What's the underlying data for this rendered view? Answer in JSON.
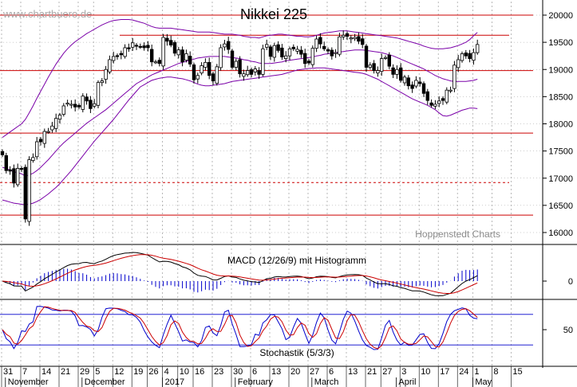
{
  "chart_data": [
    {
      "panel": "price",
      "type": "candlestick",
      "title": "Nikkei 225",
      "watermark": "www.chartbuero.de",
      "credit": "Hoppenstedt Charts",
      "y_ticks": [
        "16000",
        "16500",
        "17000",
        "17500",
        "18000",
        "18500",
        "19000",
        "19500",
        "20000"
      ],
      "ylim": [
        15800,
        20150
      ],
      "horizontal_lines": [
        {
          "value": 20000,
          "style": "solid"
        },
        {
          "value": 19630,
          "style": "solid"
        },
        {
          "value": 18980,
          "style": "solid"
        },
        {
          "value": 17830,
          "style": "solid"
        },
        {
          "value": 16920,
          "style": "dashed"
        },
        {
          "value": 16320,
          "style": "solid"
        }
      ],
      "days": [
        "2016-10-31",
        "2016-11-01",
        "2016-11-02",
        "2016-11-04",
        "2016-11-07",
        "2016-11-08",
        "2016-11-09",
        "2016-11-10",
        "2016-11-11",
        "2016-11-14",
        "2016-11-15",
        "2016-11-16",
        "2016-11-17",
        "2016-11-18",
        "2016-11-21",
        "2016-11-22",
        "2016-11-24",
        "2016-11-25",
        "2016-11-28",
        "2016-11-29",
        "2016-11-30",
        "2016-12-01",
        "2016-12-02",
        "2016-12-05",
        "2016-12-06",
        "2016-12-07",
        "2016-12-08",
        "2016-12-09",
        "2016-12-12",
        "2016-12-13",
        "2016-12-14",
        "2016-12-15",
        "2016-12-16",
        "2016-12-19",
        "2016-12-20",
        "2016-12-21",
        "2016-12-22",
        "2016-12-26",
        "2016-12-27",
        "2016-12-28",
        "2016-12-29",
        "2016-12-30",
        "2017-01-04",
        "2017-01-05",
        "2017-01-06",
        "2017-01-10",
        "2017-01-11",
        "2017-01-12",
        "2017-01-13",
        "2017-01-16",
        "2017-01-17",
        "2017-01-18",
        "2017-01-19",
        "2017-01-20",
        "2017-01-23",
        "2017-01-24",
        "2017-01-25",
        "2017-01-26",
        "2017-01-27",
        "2017-01-30",
        "2017-01-31",
        "2017-02-01",
        "2017-02-02",
        "2017-02-03",
        "2017-02-06",
        "2017-02-07",
        "2017-02-08",
        "2017-02-09",
        "2017-02-10",
        "2017-02-13",
        "2017-02-14",
        "2017-02-15",
        "2017-02-16",
        "2017-02-17",
        "2017-02-20",
        "2017-02-21",
        "2017-02-22",
        "2017-02-23",
        "2017-02-24",
        "2017-02-27",
        "2017-02-28",
        "2017-03-01",
        "2017-03-02",
        "2017-03-03",
        "2017-03-06",
        "2017-03-07",
        "2017-03-08",
        "2017-03-09",
        "2017-03-10",
        "2017-03-13",
        "2017-03-14",
        "2017-03-15",
        "2017-03-16",
        "2017-03-17",
        "2017-03-21",
        "2017-03-22",
        "2017-03-23",
        "2017-03-24",
        "2017-03-27",
        "2017-03-28",
        "2017-03-29",
        "2017-03-30",
        "2017-03-31",
        "2017-04-03",
        "2017-04-04",
        "2017-04-05",
        "2017-04-06",
        "2017-04-07",
        "2017-04-10",
        "2017-04-11",
        "2017-04-12",
        "2017-04-13",
        "2017-04-14",
        "2017-04-17",
        "2017-04-18",
        "2017-04-19",
        "2017-04-20",
        "2017-04-21",
        "2017-04-24",
        "2017-04-25",
        "2017-04-26",
        "2017-04-27",
        "2017-04-28",
        "2017-05-01",
        "2017-05-02"
      ],
      "close": [
        17430,
        17140,
        17130,
        16910,
        17180,
        17170,
        16250,
        17340,
        17380,
        17670,
        17670,
        17860,
        17860,
        17960,
        18100,
        18160,
        18330,
        18380,
        18360,
        18310,
        18310,
        18510,
        18420,
        18280,
        18370,
        18760,
        18790,
        19000,
        19180,
        19240,
        19250,
        19270,
        19400,
        19380,
        19490,
        19440,
        19420,
        19400,
        19400,
        19140,
        19140,
        19110,
        19590,
        19520,
        19450,
        19300,
        19360,
        19140,
        19290,
        19100,
        18810,
        18890,
        19070,
        19130,
        18890,
        18790,
        19050,
        19400,
        19470,
        19370,
        19040,
        19150,
        18920,
        18920,
        18980,
        18910,
        19010,
        18910,
        19380,
        19460,
        19240,
        19440,
        19350,
        19230,
        19250,
        19380,
        19380,
        19370,
        19280,
        19110,
        19120,
        19390,
        19560,
        19470,
        19380,
        19340,
        19250,
        19310,
        19600,
        19630,
        19610,
        19580,
        19590,
        19520,
        19460,
        19040,
        19080,
        18980,
        18980,
        19200,
        19220,
        19060,
        18910,
        19000,
        18800,
        18860,
        18700,
        18650,
        18800,
        18740,
        18560,
        18430,
        18340,
        18360,
        18420,
        18430,
        18620,
        18620,
        19080,
        19180,
        19290,
        19250,
        19200,
        19310,
        19460
      ],
      "moving_avg_20": [
        17200,
        17180,
        17150,
        17120,
        17100,
        17080,
        17040,
        17060,
        17090,
        17140,
        17200,
        17270,
        17340,
        17420,
        17500,
        17580,
        17650,
        17710,
        17770,
        17830,
        17890,
        17950,
        18010,
        18060,
        18110,
        18160,
        18210,
        18260,
        18320,
        18380,
        18440,
        18500,
        18560,
        18620,
        18680,
        18740,
        18780,
        18820,
        18860,
        18900,
        18930,
        18960,
        18990,
        19020,
        19050,
        19080,
        19110,
        19130,
        19150,
        19170,
        19190,
        19210,
        19220,
        19230,
        19240,
        19240,
        19240,
        19240,
        19240,
        19230,
        19220,
        19210,
        19200,
        19180,
        19170,
        19150,
        19140,
        19120,
        19110,
        19110,
        19110,
        19120,
        19130,
        19140,
        19160,
        19170,
        19180,
        19190,
        19200,
        19210,
        19220,
        19230,
        19250,
        19260,
        19280,
        19290,
        19300,
        19310,
        19320,
        19330,
        19340,
        19350,
        19360,
        19360,
        19360,
        19350,
        19340,
        19330,
        19320,
        19310,
        19290,
        19270,
        19250,
        19220,
        19190,
        19160,
        19130,
        19100,
        19070,
        19040,
        19010,
        18970,
        18930,
        18890,
        18860,
        18830,
        18810,
        18790,
        18780,
        18780,
        18780,
        18780,
        18790,
        18800,
        18820
      ],
      "bollinger_upper": [
        17750,
        17800,
        17850,
        17900,
        17950,
        18000,
        18080,
        18200,
        18330,
        18470,
        18600,
        18730,
        18860,
        18980,
        19100,
        19200,
        19300,
        19380,
        19450,
        19510,
        19560,
        19610,
        19660,
        19700,
        19740,
        19780,
        19820,
        19850,
        19880,
        19900,
        19910,
        19920,
        19920,
        19920,
        19910,
        19890,
        19870,
        19850,
        19820,
        19790,
        19770,
        19760,
        19760,
        19760,
        19760,
        19750,
        19740,
        19730,
        19720,
        19710,
        19700,
        19690,
        19690,
        19690,
        19690,
        19680,
        19670,
        19660,
        19650,
        19650,
        19650,
        19640,
        19630,
        19610,
        19600,
        19590,
        19590,
        19580,
        19600,
        19620,
        19630,
        19640,
        19650,
        19650,
        19640,
        19630,
        19620,
        19610,
        19610,
        19600,
        19600,
        19610,
        19630,
        19650,
        19670,
        19680,
        19690,
        19700,
        19710,
        19710,
        19710,
        19700,
        19690,
        19680,
        19670,
        19660,
        19650,
        19640,
        19630,
        19620,
        19610,
        19600,
        19590,
        19580,
        19560,
        19540,
        19520,
        19500,
        19480,
        19460,
        19430,
        19410,
        19390,
        19380,
        19380,
        19380,
        19390,
        19400,
        19420,
        19440,
        19470,
        19500,
        19550,
        19620,
        19680
      ],
      "bollinger_lower": [
        16600,
        16580,
        16560,
        16540,
        16530,
        16520,
        16510,
        16520,
        16540,
        16570,
        16610,
        16660,
        16710,
        16770,
        16830,
        16900,
        16980,
        17060,
        17140,
        17230,
        17320,
        17410,
        17500,
        17590,
        17680,
        17760,
        17840,
        17920,
        18000,
        18080,
        18170,
        18260,
        18350,
        18440,
        18520,
        18600,
        18680,
        18720,
        18760,
        18800,
        18820,
        18840,
        18850,
        18860,
        18860,
        18850,
        18840,
        18830,
        18810,
        18790,
        18760,
        18730,
        18710,
        18700,
        18700,
        18710,
        18720,
        18730,
        18740,
        18760,
        18780,
        18790,
        18800,
        18810,
        18820,
        18830,
        18840,
        18850,
        18860,
        18870,
        18880,
        18890,
        18900,
        18910,
        18930,
        18950,
        18970,
        18990,
        19000,
        19010,
        19020,
        19020,
        19030,
        19030,
        19030,
        19020,
        19010,
        19000,
        18990,
        18980,
        18970,
        18960,
        18950,
        18940,
        18930,
        18910,
        18880,
        18850,
        18820,
        18780,
        18740,
        18700,
        18660,
        18620,
        18580,
        18540,
        18500,
        18460,
        18430,
        18400,
        18370,
        18340,
        18300,
        18260,
        18200,
        18150,
        18140,
        18160,
        18190,
        18220,
        18250,
        18270,
        18290,
        18290,
        18280
      ],
      "x_tick_labels": [
        "31",
        "7",
        "14",
        "21",
        "29",
        "5",
        "12",
        "19",
        "26",
        "4",
        "10",
        "16",
        "23",
        "30",
        "6",
        "13",
        "20",
        "27",
        "6",
        "13",
        "21",
        "27",
        "3",
        "10",
        "17",
        "24",
        "1",
        "8",
        "15"
      ],
      "month_labels": [
        {
          "label": "November",
          "index": 1
        },
        {
          "label": "December",
          "index": 21
        },
        {
          "label": "2017",
          "index": 42
        },
        {
          "label": "February",
          "index": 61
        },
        {
          "label": "March",
          "index": 81
        },
        {
          "label": "April",
          "index": 103
        },
        {
          "label": "May",
          "index": 123
        }
      ]
    },
    {
      "panel": "macd",
      "type": "line+bar",
      "title": "MACD (12/26/9) mit Histogramm",
      "y_ticks": [
        "0"
      ],
      "series_colors": {
        "macd": "#000000",
        "signal": "#cc0000",
        "histogram": "#0000cc"
      }
    },
    {
      "panel": "stochastic",
      "type": "line",
      "title": "Stochastik (5/3/3)",
      "y_ticks": [
        "50"
      ],
      "ylim": [
        0,
        100
      ],
      "horizontal_lines": [
        80,
        20
      ],
      "series_colors": {
        "k": "#0000cc",
        "d": "#cc0000"
      }
    }
  ],
  "colors": {
    "hline": "#cc0000",
    "bands": "#7a00a8",
    "grid": "#9a9a9a",
    "candle_up": "#ffffff",
    "candle_down": "#000000"
  }
}
